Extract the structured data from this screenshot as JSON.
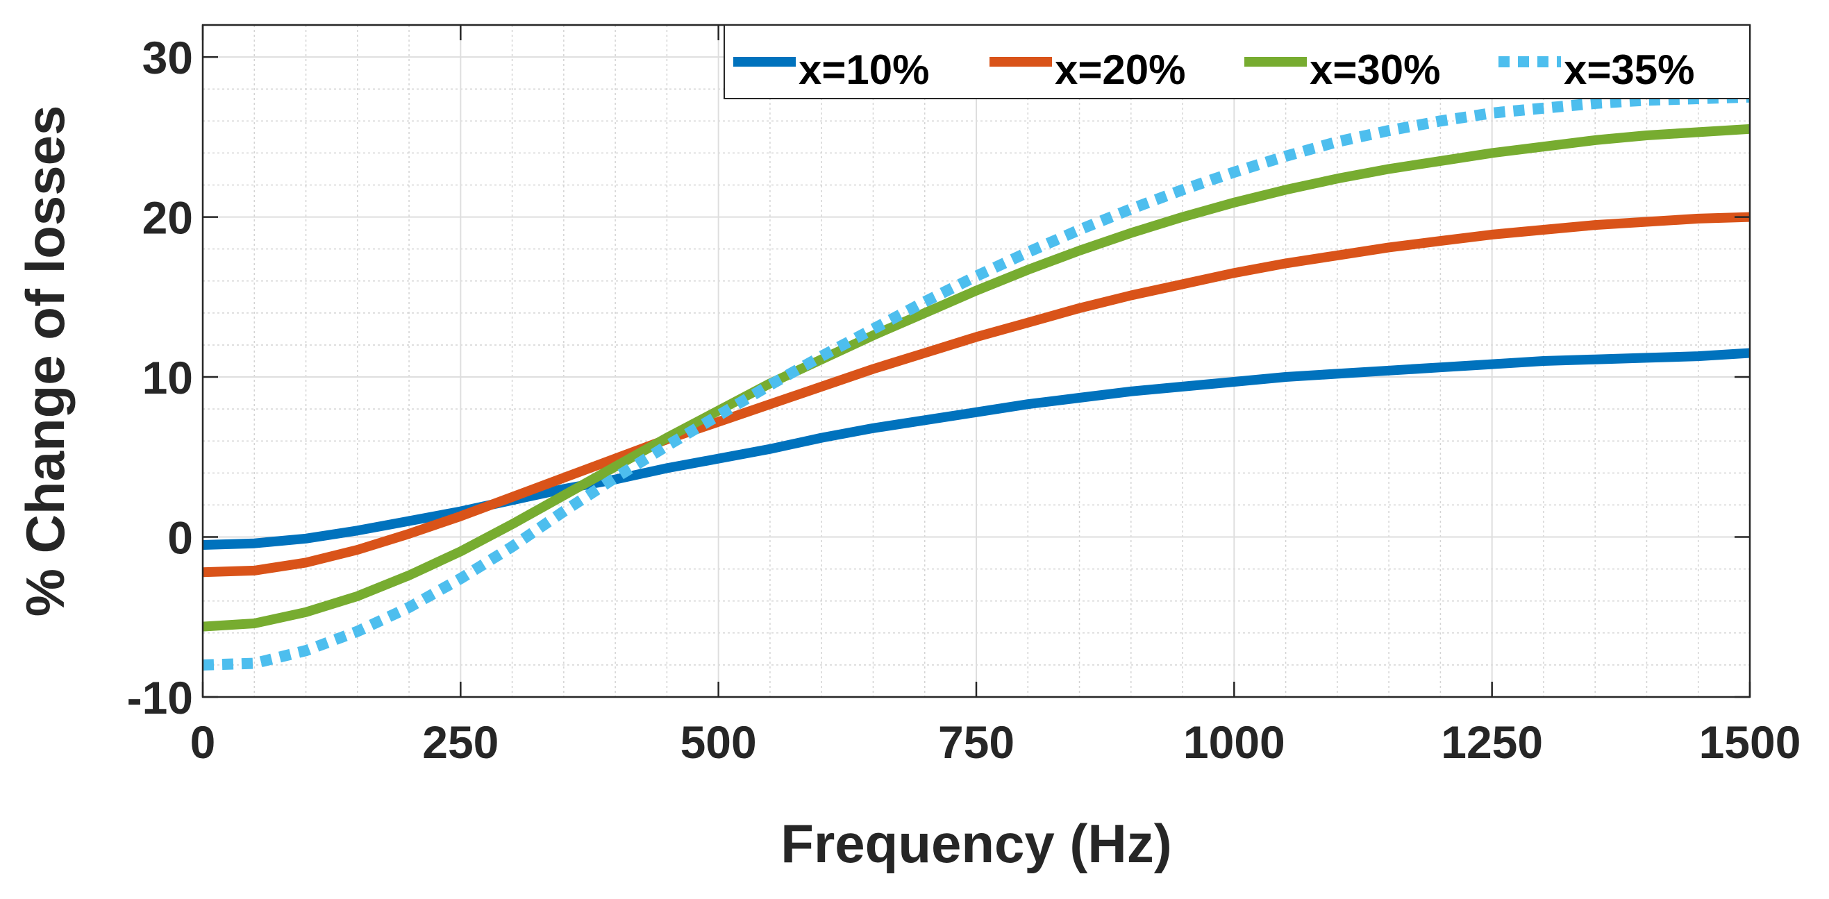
{
  "chart_data": {
    "type": "line",
    "title": "",
    "xlabel": "Frequency (Hz)",
    "ylabel": "% Change of losses",
    "xlim": [
      0,
      1500
    ],
    "ylim": [
      -10,
      32
    ],
    "xticks": [
      0,
      250,
      500,
      750,
      1000,
      1250,
      1500
    ],
    "xtick_labels": [
      "0",
      "250",
      "500",
      "750",
      "1000",
      "1250",
      "1500"
    ],
    "yticks": [
      -10,
      0,
      10,
      20,
      30
    ],
    "ytick_labels": [
      "-10",
      "0",
      "10",
      "20",
      "30"
    ],
    "grid": true,
    "legend_position": "top-right",
    "x": [
      0,
      50,
      100,
      150,
      200,
      250,
      300,
      350,
      400,
      450,
      500,
      550,
      600,
      650,
      700,
      750,
      800,
      850,
      900,
      950,
      1000,
      1050,
      1100,
      1150,
      1200,
      1250,
      1300,
      1350,
      1400,
      1450,
      1500
    ],
    "series": [
      {
        "name": "x=10%",
        "label": "x=10%",
        "color": "#0072BD",
        "style": "solid",
        "values": [
          -0.5,
          -0.4,
          -0.1,
          0.4,
          1.0,
          1.6,
          2.3,
          3.0,
          3.6,
          4.3,
          4.9,
          5.5,
          6.2,
          6.8,
          7.3,
          7.8,
          8.3,
          8.7,
          9.1,
          9.4,
          9.7,
          10.0,
          10.2,
          10.4,
          10.6,
          10.8,
          11.0,
          11.1,
          11.2,
          11.3,
          11.5
        ]
      },
      {
        "name": "x=20%",
        "label": "x=20%",
        "color": "#D95319",
        "style": "solid",
        "values": [
          -2.2,
          -2.1,
          -1.6,
          -0.8,
          0.2,
          1.3,
          2.5,
          3.7,
          4.9,
          6.1,
          7.2,
          8.3,
          9.4,
          10.5,
          11.5,
          12.5,
          13.4,
          14.3,
          15.1,
          15.8,
          16.5,
          17.1,
          17.6,
          18.1,
          18.5,
          18.9,
          19.2,
          19.5,
          19.7,
          19.9,
          20.0
        ]
      },
      {
        "name": "x=30%",
        "label": "x=30%",
        "color": "#77AC30",
        "style": "solid",
        "values": [
          -5.6,
          -5.4,
          -4.7,
          -3.7,
          -2.4,
          -0.9,
          0.8,
          2.6,
          4.4,
          6.2,
          7.9,
          9.6,
          11.1,
          12.6,
          14.0,
          15.4,
          16.7,
          17.9,
          19.0,
          20.0,
          20.9,
          21.7,
          22.4,
          23.0,
          23.5,
          24.0,
          24.4,
          24.8,
          25.1,
          25.3,
          25.5
        ]
      },
      {
        "name": "x=35%",
        "label": "x=35%",
        "color": "#4DBEEE",
        "style": "dotted",
        "values": [
          -8.0,
          -7.9,
          -7.1,
          -5.9,
          -4.4,
          -2.6,
          -0.6,
          1.6,
          3.7,
          5.7,
          7.6,
          9.5,
          11.3,
          13.0,
          14.7,
          16.3,
          17.8,
          19.2,
          20.5,
          21.7,
          22.8,
          23.8,
          24.7,
          25.4,
          26.0,
          26.5,
          26.8,
          27.1,
          27.3,
          27.4,
          27.5
        ]
      }
    ]
  }
}
